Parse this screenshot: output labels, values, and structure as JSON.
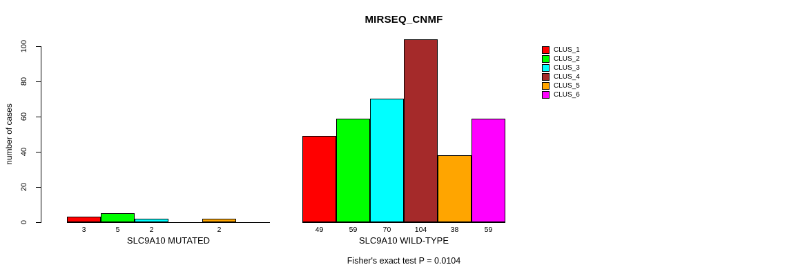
{
  "chart_data": {
    "type": "bar",
    "title": "MIRSEQ_CNMF",
    "ylabel": "number of cases",
    "ylim": [
      0,
      100
    ],
    "yticks": [
      0,
      20,
      40,
      60,
      80,
      100
    ],
    "grid": false,
    "legend_position": "right",
    "clusters": [
      "CLUS_1",
      "CLUS_2",
      "CLUS_3",
      "CLUS_4",
      "CLUS_5",
      "CLUS_6"
    ],
    "colors": [
      "#ff0000",
      "#00ff00",
      "#00ffff",
      "#a52a2a",
      "#ffa500",
      "#ff00ff"
    ],
    "groups": [
      {
        "label": "SLC9A10 MUTATED",
        "values": [
          3,
          5,
          2,
          0,
          2,
          0
        ],
        "bar_labels": [
          "3",
          "5",
          "2",
          "",
          "2",
          ""
        ]
      },
      {
        "label": "SLC9A10 WILD-TYPE",
        "values": [
          49,
          59,
          70,
          104,
          38,
          59
        ],
        "bar_labels": [
          "49",
          "59",
          "70",
          "104",
          "38",
          "59"
        ]
      }
    ]
  },
  "footer": {
    "text": "Fisher's exact test P = 0.0104"
  }
}
